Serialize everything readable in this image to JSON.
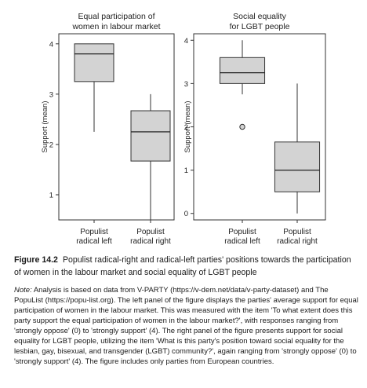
{
  "chart_data": [
    {
      "type": "box",
      "title": "Equal participation of\nwomen in labour market",
      "ylabel": "Support (mean)",
      "ylim": [
        0.5,
        4.2
      ],
      "yticks": [
        1,
        2,
        3,
        4
      ],
      "categories": [
        "Populist\nradical left",
        "Populist\nradical right"
      ],
      "boxes": [
        {
          "whisker_low": 2.25,
          "q1": 3.25,
          "median": 3.8,
          "q3": 4.0,
          "whisker_high": 4.0,
          "outliers": []
        },
        {
          "whisker_low": 0.5,
          "q1": 1.67,
          "median": 2.25,
          "q3": 2.67,
          "whisker_high": 3.0,
          "outliers": []
        }
      ],
      "box_fill": "#d3d3d3",
      "grid": false
    },
    {
      "type": "box",
      "title": "Social equality\nfor LGBT people",
      "ylabel": "Support (mean)",
      "ylim": [
        -0.15,
        4.15
      ],
      "yticks": [
        0,
        1,
        2,
        3,
        4
      ],
      "categories": [
        "Populist\nradical left",
        "Populist\nradical right"
      ],
      "boxes": [
        {
          "whisker_low": 2.75,
          "q1": 3.0,
          "median": 3.25,
          "q3": 3.6,
          "whisker_high": 4.0,
          "outliers": [
            2.0
          ]
        },
        {
          "whisker_low": 0.0,
          "q1": 0.5,
          "median": 1.0,
          "q3": 1.65,
          "whisker_high": 3.0,
          "outliers": []
        }
      ],
      "box_fill": "#d3d3d3",
      "grid": false
    }
  ],
  "caption": {
    "figure_number": "Figure 14.2",
    "text": "Populist radical-right and radical-left parties' positions towards the participation of women in the labour market and social equality of LGBT people"
  },
  "note": {
    "label": "Note:",
    "text": "Analysis is based on data from V-PARTY (https://v-dem.net/data/v-party-dataset) and The PopuList (https://popu-list.org). The left panel of the figure displays the parties' average support for equal participation of women in the labour market. This was measured with the item 'To what extent does this party support the equal participation of women in the labour market?', with responses ranging from 'strongly oppose' (0) to 'strongly support' (4). The right panel of the figure presents support for social equality for LGBT people, utilizing the item 'What is this party's position toward social equality for the lesbian, gay, bisexual, and transgender (LGBT) community?', again ranging from 'strongly oppose' (0) to 'strongly support' (4). The figure includes only parties from European countries."
  }
}
